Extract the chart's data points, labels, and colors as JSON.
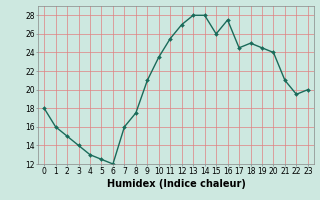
{
  "x": [
    0,
    1,
    2,
    3,
    4,
    5,
    6,
    7,
    8,
    9,
    10,
    11,
    12,
    13,
    14,
    15,
    16,
    17,
    18,
    19,
    20,
    21,
    22,
    23
  ],
  "y": [
    18,
    16,
    15,
    14,
    13,
    12.5,
    12,
    16,
    17.5,
    21,
    23.5,
    25.5,
    27,
    28,
    28,
    26,
    27.5,
    24.5,
    25,
    24.5,
    24,
    21,
    19.5,
    20
  ],
  "line_color": "#1a6b5a",
  "marker": "D",
  "marker_size": 2.0,
  "bg_color": "#cde8e0",
  "grid_color": "#e08080",
  "xlabel": "Humidex (Indice chaleur)",
  "xlabel_fontsize": 7,
  "xlim": [
    -0.5,
    23.5
  ],
  "ylim": [
    12,
    29
  ],
  "yticks": [
    12,
    14,
    16,
    18,
    20,
    22,
    24,
    26,
    28
  ],
  "xticks": [
    0,
    1,
    2,
    3,
    4,
    5,
    6,
    7,
    8,
    9,
    10,
    11,
    12,
    13,
    14,
    15,
    16,
    17,
    18,
    19,
    20,
    21,
    22,
    23
  ],
  "tick_fontsize": 5.5,
  "line_width": 1.0
}
